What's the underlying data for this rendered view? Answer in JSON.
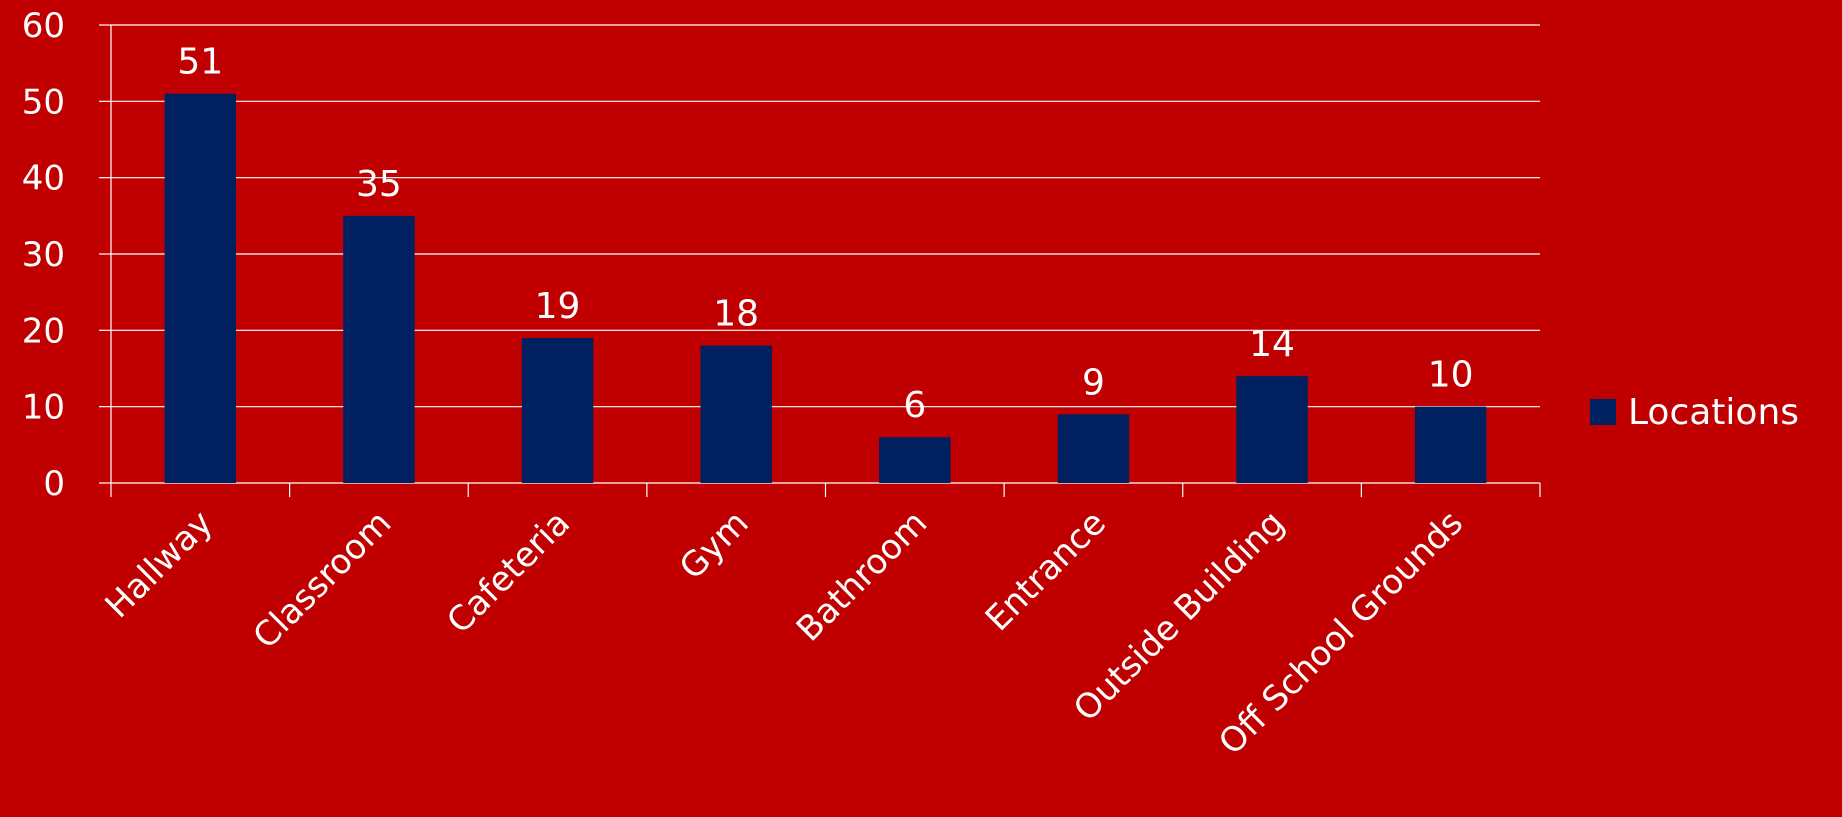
{
  "colors": {
    "background": "#c00000",
    "bar": "#002060",
    "gridline": "#ffffff",
    "text": "#ffffff"
  },
  "chart_data": {
    "type": "bar",
    "categories": [
      "Hallway",
      "Classroom",
      "Cafeteria",
      "Gym",
      "Bathroom",
      "Entrance",
      "Outside Building",
      "Off School Grounds"
    ],
    "series": [
      {
        "name": "Locations",
        "values": [
          51,
          35,
          19,
          18,
          6,
          9,
          14,
          10
        ]
      }
    ],
    "ylim": [
      0,
      60
    ],
    "yticks": [
      0,
      10,
      20,
      30,
      40,
      50,
      60
    ],
    "grid": true,
    "legend": "right",
    "data_labels": true
  }
}
